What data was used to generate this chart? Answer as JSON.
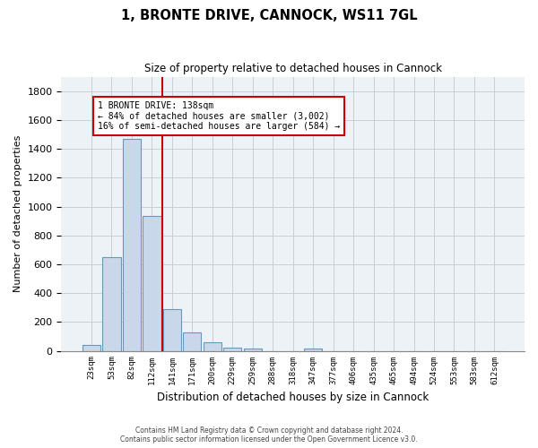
{
  "title": "1, BRONTE DRIVE, CANNOCK, WS11 7GL",
  "subtitle": "Size of property relative to detached houses in Cannock",
  "xlabel": "Distribution of detached houses by size in Cannock",
  "ylabel": "Number of detached properties",
  "bar_color": "#c8d8ea",
  "bar_edge_color": "#6699bb",
  "categories": [
    "23sqm",
    "53sqm",
    "82sqm",
    "112sqm",
    "141sqm",
    "171sqm",
    "200sqm",
    "229sqm",
    "259sqm",
    "288sqm",
    "318sqm",
    "347sqm",
    "377sqm",
    "406sqm",
    "435sqm",
    "465sqm",
    "494sqm",
    "524sqm",
    "553sqm",
    "583sqm",
    "612sqm"
  ],
  "values": [
    38,
    650,
    1470,
    935,
    290,
    125,
    62,
    22,
    14,
    0,
    0,
    14,
    0,
    0,
    0,
    0,
    0,
    0,
    0,
    0,
    0
  ],
  "ylim": [
    0,
    1900
  ],
  "yticks": [
    0,
    200,
    400,
    600,
    800,
    1000,
    1200,
    1400,
    1600,
    1800
  ],
  "vline_x": 3.5,
  "vline_color": "#cc0000",
  "annotation_text": "1 BRONTE DRIVE: 138sqm\n← 84% of detached houses are smaller (3,002)\n16% of semi-detached houses are larger (584) →",
  "annotation_box_color": "#ffffff",
  "annotation_box_edge": "#cc0000",
  "background_color": "#edf2f7",
  "grid_color": "#c5cdd6",
  "footer_line1": "Contains HM Land Registry data © Crown copyright and database right 2024.",
  "footer_line2": "Contains public sector information licensed under the Open Government Licence v3.0."
}
